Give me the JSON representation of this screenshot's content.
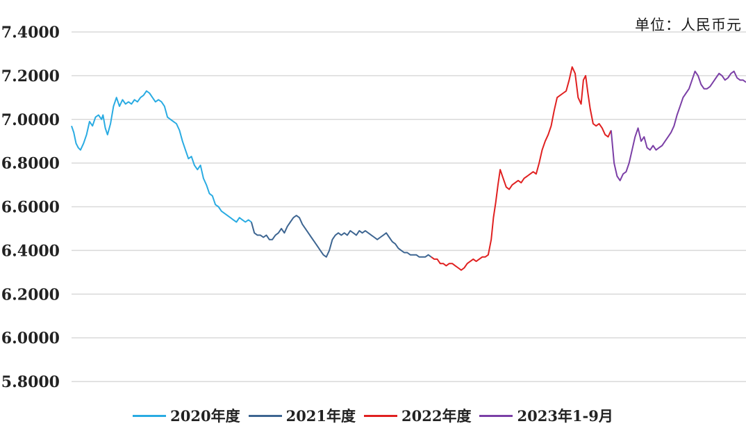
{
  "unit_label": "单位：人民币元",
  "colors": {
    "grid": "#d9d9d9",
    "tick_text": "#222222"
  },
  "chart_data": {
    "type": "line",
    "title": "",
    "xlabel": "",
    "ylabel": "",
    "ylim": [
      5.8,
      7.4
    ],
    "yticks": [
      "5.8000",
      "6.0000",
      "6.2000",
      "6.4000",
      "6.6000",
      "6.8000",
      "7.0000",
      "7.2000",
      "7.4000"
    ],
    "grid": true,
    "legend_position": "bottom",
    "x_unit": "month index from Jan 2020",
    "series": [
      {
        "name": "2020年度",
        "color": "#29abe2",
        "x": [
          0,
          0.15,
          0.3,
          0.45,
          0.6,
          0.8,
          1.0,
          1.2,
          1.4,
          1.6,
          1.8,
          2.0,
          2.1,
          2.25,
          2.4,
          2.6,
          2.8,
          3.0,
          3.2,
          3.4,
          3.6,
          3.8,
          4.0,
          4.2,
          4.4,
          4.6,
          4.8,
          5.0,
          5.2,
          5.4,
          5.6,
          5.8,
          6.0,
          6.2,
          6.4,
          6.6,
          6.8,
          7.0,
          7.2,
          7.4,
          7.6,
          7.8,
          8.0,
          8.2,
          8.4,
          8.6,
          8.8,
          9.0,
          9.2,
          9.4,
          9.6,
          9.8,
          10.0,
          10.2,
          10.4,
          10.6,
          10.8,
          11.0,
          11.2,
          11.4,
          11.6,
          11.8,
          12.0
        ],
        "values": [
          6.97,
          6.94,
          6.89,
          6.87,
          6.86,
          6.89,
          6.93,
          6.99,
          6.97,
          7.01,
          7.02,
          7.0,
          7.02,
          6.96,
          6.93,
          6.98,
          7.06,
          7.1,
          7.06,
          7.09,
          7.07,
          7.08,
          7.07,
          7.09,
          7.08,
          7.1,
          7.11,
          7.13,
          7.12,
          7.1,
          7.08,
          7.09,
          7.08,
          7.06,
          7.01,
          7.0,
          6.99,
          6.98,
          6.95,
          6.9,
          6.86,
          6.82,
          6.83,
          6.79,
          6.77,
          6.79,
          6.73,
          6.7,
          6.66,
          6.65,
          6.61,
          6.6,
          6.58,
          6.57,
          6.56,
          6.55,
          6.54,
          6.53,
          6.55,
          6.54,
          6.53,
          6.54,
          6.53
        ]
      },
      {
        "name": "2021年度",
        "color": "#3d6591",
        "x": [
          12.0,
          12.2,
          12.4,
          12.6,
          12.8,
          13.0,
          13.2,
          13.4,
          13.6,
          13.8,
          14.0,
          14.2,
          14.4,
          14.6,
          14.8,
          15.0,
          15.2,
          15.4,
          15.6,
          15.8,
          16.0,
          16.2,
          16.4,
          16.6,
          16.8,
          17.0,
          17.2,
          17.4,
          17.6,
          17.8,
          18.0,
          18.2,
          18.4,
          18.6,
          18.8,
          19.0,
          19.2,
          19.4,
          19.6,
          19.8,
          20.0,
          20.2,
          20.4,
          20.6,
          20.8,
          21.0,
          21.2,
          21.4,
          21.6,
          21.8,
          22.0,
          22.2,
          22.4,
          22.6,
          22.8,
          23.0,
          23.2,
          23.4,
          23.6,
          23.8,
          24.0
        ],
        "values": [
          6.53,
          6.48,
          6.47,
          6.47,
          6.46,
          6.47,
          6.45,
          6.45,
          6.47,
          6.48,
          6.5,
          6.48,
          6.51,
          6.53,
          6.55,
          6.56,
          6.55,
          6.52,
          6.5,
          6.48,
          6.46,
          6.44,
          6.42,
          6.4,
          6.38,
          6.37,
          6.4,
          6.45,
          6.47,
          6.48,
          6.47,
          6.48,
          6.47,
          6.49,
          6.48,
          6.47,
          6.49,
          6.48,
          6.49,
          6.48,
          6.47,
          6.46,
          6.45,
          6.46,
          6.47,
          6.48,
          6.46,
          6.44,
          6.43,
          6.41,
          6.4,
          6.39,
          6.39,
          6.38,
          6.38,
          6.38,
          6.37,
          6.37,
          6.37,
          6.38,
          6.37
        ]
      },
      {
        "name": "2022年度",
        "color": "#e02020",
        "x": [
          24.0,
          24.2,
          24.4,
          24.6,
          24.8,
          25.0,
          25.2,
          25.4,
          25.6,
          25.8,
          26.0,
          26.2,
          26.4,
          26.6,
          26.8,
          27.0,
          27.2,
          27.4,
          27.6,
          27.8,
          28.0,
          28.15,
          28.3,
          28.45,
          28.6,
          28.8,
          29.0,
          29.2,
          29.4,
          29.6,
          29.8,
          30.0,
          30.2,
          30.4,
          30.6,
          30.8,
          31.0,
          31.2,
          31.4,
          31.6,
          31.8,
          32.0,
          32.2,
          32.4,
          32.6,
          32.8,
          33.0,
          33.2,
          33.4,
          33.6,
          33.8,
          34.0,
          34.15,
          34.3,
          34.45,
          34.6,
          34.8,
          35.0,
          35.2,
          35.4,
          35.6,
          35.8,
          36.0
        ],
        "values": [
          6.37,
          6.36,
          6.36,
          6.34,
          6.34,
          6.33,
          6.34,
          6.34,
          6.33,
          6.32,
          6.31,
          6.32,
          6.34,
          6.35,
          6.36,
          6.35,
          6.36,
          6.37,
          6.37,
          6.38,
          6.45,
          6.55,
          6.62,
          6.7,
          6.77,
          6.73,
          6.69,
          6.68,
          6.7,
          6.71,
          6.72,
          6.71,
          6.73,
          6.74,
          6.75,
          6.76,
          6.75,
          6.8,
          6.86,
          6.9,
          6.93,
          6.97,
          7.04,
          7.1,
          7.11,
          7.12,
          7.13,
          7.18,
          7.24,
          7.21,
          7.1,
          7.07,
          7.18,
          7.2,
          7.12,
          7.05,
          6.98,
          6.97,
          6.98,
          6.96,
          6.93,
          6.92,
          6.95
        ]
      },
      {
        "name": "2023年1-9月",
        "color": "#7b3fa6",
        "x": [
          36.0,
          36.2,
          36.4,
          36.6,
          36.8,
          37.0,
          37.2,
          37.4,
          37.6,
          37.8,
          38.0,
          38.2,
          38.4,
          38.6,
          38.8,
          39.0,
          39.2,
          39.4,
          39.6,
          39.8,
          40.0,
          40.2,
          40.4,
          40.6,
          40.8,
          41.0,
          41.2,
          41.4,
          41.6,
          41.8,
          42.0,
          42.2,
          42.4,
          42.6,
          42.8,
          43.0,
          43.2,
          43.4,
          43.6,
          43.8,
          44.0,
          44.2,
          44.4,
          44.6,
          44.8,
          45.0
        ],
        "values": [
          6.95,
          6.8,
          6.74,
          6.72,
          6.75,
          6.76,
          6.8,
          6.86,
          6.92,
          6.96,
          6.9,
          6.92,
          6.87,
          6.86,
          6.88,
          6.86,
          6.87,
          6.88,
          6.9,
          6.92,
          6.94,
          6.97,
          7.02,
          7.06,
          7.1,
          7.12,
          7.14,
          7.18,
          7.22,
          7.2,
          7.16,
          7.14,
          7.14,
          7.15,
          7.17,
          7.19,
          7.21,
          7.2,
          7.18,
          7.19,
          7.21,
          7.22,
          7.19,
          7.18,
          7.18,
          7.17
        ]
      }
    ]
  }
}
